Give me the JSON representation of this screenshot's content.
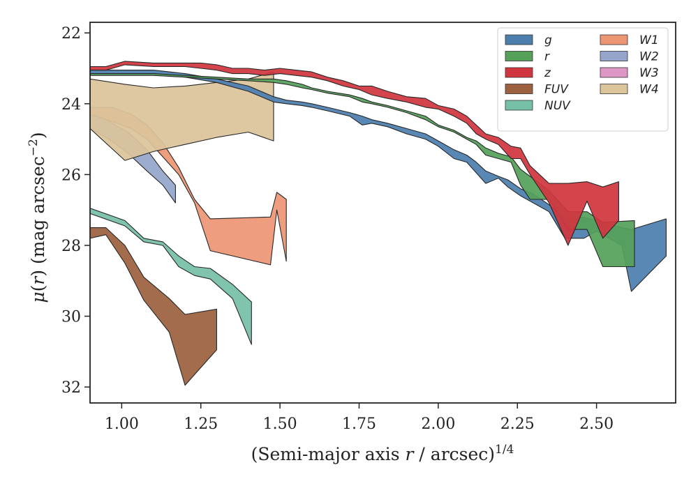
{
  "chart_data": {
    "type": "area",
    "xlabel": "(Semi-major axis r / arcsec)^1/4",
    "ylabel": "μ(r) (mag arcsec^-2)",
    "xlim": [
      0.9,
      2.75
    ],
    "ylim": [
      32.45,
      21.7
    ],
    "y_inverted": true,
    "x_ticks": [
      "1.00",
      "1.25",
      "1.50",
      "1.75",
      "2.00",
      "2.25",
      "2.50"
    ],
    "y_ticks": [
      "22",
      "24",
      "26",
      "28",
      "30",
      "32"
    ],
    "legend": {
      "placement": "top-right",
      "columns": 2,
      "entries": [
        {
          "label_main": "g",
          "label_sup": "",
          "color": "#4c7fae"
        },
        {
          "label_main": "r",
          "label_sup": "",
          "color": "#55a15a"
        },
        {
          "label_main": "z",
          "label_sup": "",
          "color": "#d1363f"
        },
        {
          "label_main": "FUV",
          "label_sup": "",
          "color": "#9c6240"
        },
        {
          "label_main": "NUV",
          "label_sup": "",
          "color": "#77c0a8"
        },
        {
          "label_main": "W",
          "label_sup": "1",
          "color": "#ed9674"
        },
        {
          "label_main": "W",
          "label_sup": "2",
          "color": "#95a6ca"
        },
        {
          "label_main": "W",
          "label_sup": "3",
          "color": "#dd97c6"
        },
        {
          "label_main": "W",
          "label_sup": "4",
          "color": "#dcc49b"
        }
      ]
    },
    "series": [
      {
        "key": "FUV",
        "color": "#9c6240",
        "x": [
          0.9,
          0.95,
          1.01,
          1.07,
          1.15,
          1.2,
          1.3
        ],
        "lower": [
          27.5,
          27.5,
          28.0,
          28.9,
          29.5,
          29.95,
          29.8
        ],
        "upper": [
          27.8,
          27.7,
          28.5,
          29.55,
          30.45,
          31.95,
          30.95
        ]
      },
      {
        "key": "NUV",
        "color": "#77c0a8",
        "x": [
          0.9,
          1.01,
          1.07,
          1.13,
          1.18,
          1.23,
          1.28,
          1.35,
          1.41
        ],
        "lower": [
          26.95,
          27.3,
          27.8,
          27.9,
          28.3,
          28.6,
          28.65,
          29.1,
          29.6
        ],
        "upper": [
          27.1,
          27.45,
          27.9,
          28.0,
          28.6,
          28.85,
          28.95,
          29.5,
          30.8
        ]
      },
      {
        "key": "W2",
        "color": "#95a6ca",
        "x": [
          0.9,
          0.96,
          1.02,
          1.08,
          1.13,
          1.17
        ],
        "lower": [
          24.2,
          24.5,
          24.8,
          25.3,
          25.9,
          26.3
        ],
        "upper": [
          24.7,
          25.0,
          25.4,
          25.9,
          26.3,
          26.8
        ]
      },
      {
        "key": "W1",
        "color": "#ed9674",
        "x": [
          0.9,
          0.97,
          1.03,
          1.08,
          1.13,
          1.18,
          1.23,
          1.28,
          1.47,
          1.49,
          1.52
        ],
        "lower": [
          24.1,
          24.1,
          24.3,
          24.6,
          25.1,
          25.8,
          26.7,
          27.25,
          27.2,
          26.5,
          26.7
        ],
        "upper": [
          24.3,
          24.5,
          24.7,
          25.0,
          25.5,
          26.0,
          26.8,
          28.15,
          28.55,
          27.0,
          28.45
        ]
      },
      {
        "key": "W4",
        "color": "#dcc49b",
        "x": [
          0.9,
          1.01,
          1.1,
          1.2,
          1.3,
          1.4,
          1.48
        ],
        "lower": [
          23.3,
          23.45,
          23.55,
          23.5,
          23.4,
          23.3,
          23.1
        ],
        "upper": [
          24.7,
          25.6,
          25.35,
          25.15,
          24.95,
          24.8,
          25.05
        ]
      },
      {
        "key": "g",
        "color": "#4c7fae",
        "x": [
          0.9,
          1.01,
          1.1,
          1.2,
          1.3,
          1.4,
          1.48,
          1.52,
          1.57,
          1.6,
          1.65,
          1.72,
          1.76,
          1.79,
          1.84,
          1.9,
          1.96,
          2.0,
          2.05,
          2.09,
          2.12,
          2.15,
          2.19,
          2.22,
          2.26,
          2.3,
          2.35,
          2.4,
          2.46,
          2.5,
          2.58,
          2.61,
          2.72
        ],
        "lower": [
          23.05,
          23.05,
          23.05,
          23.15,
          23.3,
          23.5,
          23.8,
          23.9,
          23.95,
          24.0,
          24.1,
          24.25,
          24.35,
          24.45,
          24.55,
          24.7,
          24.85,
          25.05,
          25.3,
          25.45,
          25.65,
          25.9,
          26.05,
          26.15,
          26.4,
          26.55,
          26.85,
          27.25,
          27.2,
          27.3,
          27.5,
          27.55,
          27.25
        ],
        "upper": [
          23.15,
          23.15,
          23.15,
          23.25,
          23.4,
          23.65,
          23.95,
          24.0,
          24.05,
          24.1,
          24.2,
          24.35,
          24.6,
          24.55,
          24.65,
          24.85,
          25.0,
          25.2,
          25.55,
          25.65,
          25.95,
          26.25,
          26.1,
          26.35,
          26.6,
          26.8,
          27.05,
          27.8,
          27.8,
          27.6,
          28.0,
          29.3,
          28.3
        ]
      },
      {
        "key": "r",
        "color": "#55a15a",
        "x": [
          0.9,
          1.01,
          1.1,
          1.2,
          1.3,
          1.4,
          1.48,
          1.52,
          1.57,
          1.6,
          1.65,
          1.72,
          1.76,
          1.79,
          1.84,
          1.9,
          1.96,
          2.0,
          2.05,
          2.09,
          2.12,
          2.15,
          2.19,
          2.23,
          2.26,
          2.29,
          2.35,
          2.41,
          2.47,
          2.52,
          2.62
        ],
        "lower": [
          23.15,
          23.15,
          23.15,
          23.2,
          23.25,
          23.3,
          23.3,
          23.35,
          23.45,
          23.55,
          23.65,
          23.75,
          23.85,
          23.95,
          24.05,
          24.2,
          24.35,
          24.6,
          24.75,
          24.95,
          25.05,
          25.25,
          25.4,
          25.5,
          25.85,
          26.05,
          26.45,
          27.05,
          27.05,
          27.35,
          27.3
        ],
        "upper": [
          23.2,
          23.2,
          23.2,
          23.25,
          23.3,
          23.35,
          23.4,
          23.45,
          23.55,
          23.6,
          23.7,
          23.8,
          23.95,
          24.0,
          24.1,
          24.25,
          24.45,
          24.65,
          24.8,
          25.0,
          25.15,
          25.45,
          25.55,
          25.65,
          26.3,
          26.7,
          26.7,
          27.55,
          27.55,
          28.6,
          28.6
        ]
      },
      {
        "key": "z",
        "color": "#d1363f",
        "x": [
          0.9,
          0.95,
          1.01,
          1.1,
          1.2,
          1.25,
          1.3,
          1.35,
          1.4,
          1.45,
          1.5,
          1.55,
          1.6,
          1.65,
          1.7,
          1.75,
          1.79,
          1.84,
          1.9,
          1.96,
          2.0,
          2.05,
          2.09,
          2.12,
          2.15,
          2.19,
          2.23,
          2.26,
          2.29,
          2.35,
          2.41,
          2.47,
          2.52,
          2.57
        ],
        "lower": [
          22.95,
          22.95,
          22.8,
          22.85,
          22.85,
          22.85,
          22.9,
          23.0,
          23.0,
          23.05,
          23.0,
          23.05,
          23.1,
          23.25,
          23.35,
          23.5,
          23.5,
          23.65,
          23.8,
          23.85,
          24.05,
          24.15,
          24.35,
          24.6,
          24.85,
          24.95,
          25.2,
          25.25,
          25.75,
          26.25,
          26.25,
          26.2,
          26.35,
          26.2
        ],
        "upper": [
          23.05,
          23.05,
          22.9,
          22.95,
          22.95,
          23.0,
          23.05,
          23.15,
          23.15,
          23.2,
          23.15,
          23.2,
          23.25,
          23.35,
          23.5,
          23.6,
          23.75,
          23.85,
          23.95,
          24.1,
          24.15,
          24.35,
          24.55,
          24.85,
          25.0,
          25.15,
          25.55,
          25.55,
          26.0,
          26.8,
          28.0,
          26.75,
          27.8,
          27.3
        ]
      }
    ]
  }
}
